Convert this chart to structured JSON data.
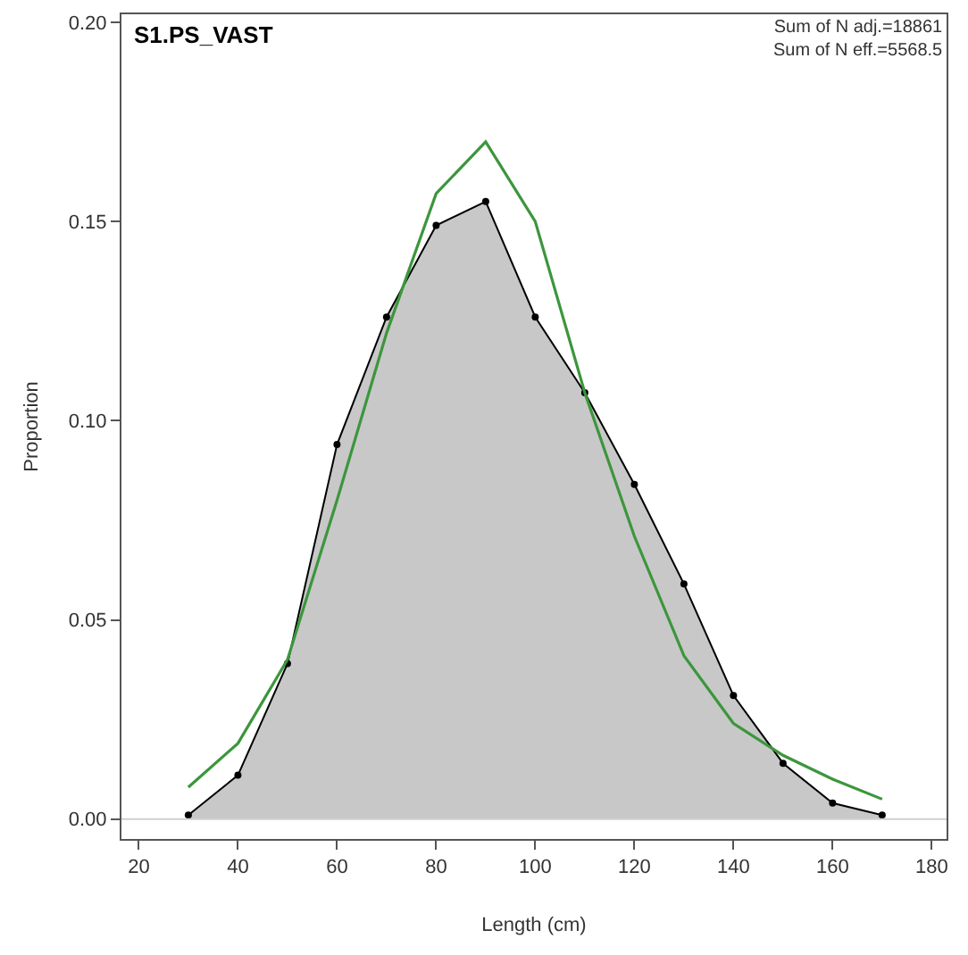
{
  "chart_data": {
    "type": "area",
    "title": "S1.PS_VAST",
    "xlabel": "Length (cm)",
    "ylabel": "Proportion",
    "annotations": [
      "Sum of N adj.=18861",
      "Sum of N eff.=5568.5"
    ],
    "x": [
      30,
      40,
      50,
      60,
      70,
      80,
      90,
      100,
      110,
      120,
      130,
      140,
      150,
      160,
      170
    ],
    "series": [
      {
        "color": "#c8c8c8",
        "marker": "circle",
        "values": [
          0.001,
          0.011,
          0.039,
          0.094,
          0.126,
          0.149,
          0.155,
          0.126,
          0.107,
          0.084,
          0.059,
          0.031,
          0.014,
          0.004,
          0.001
        ]
      },
      {
        "type": "line",
        "color": "#3c963c",
        "marker": "none",
        "values": [
          0.008,
          0.019,
          0.04,
          0.08,
          0.122,
          0.157,
          0.17,
          0.15,
          0.107,
          0.071,
          0.041,
          0.024,
          0.016,
          0.01,
          0.005
        ]
      }
    ],
    "xlim": [
      16.5,
      183
    ],
    "ylim": [
      -0.005,
      0.202
    ],
    "xticks": [
      20,
      40,
      60,
      80,
      100,
      120,
      140,
      160,
      180
    ],
    "yticks": [
      {
        "value": 0,
        "label": "0.00"
      },
      {
        "value": 0.05,
        "label": "0.05"
      },
      {
        "value": 0.1,
        "label": "0.10"
      },
      {
        "value": 0.15,
        "label": "0.15"
      },
      {
        "value": 0.2,
        "label": "0.20"
      }
    ],
    "ref_lines": [
      {
        "axis": "y",
        "value": 0,
        "color": "#d0d0d0"
      }
    ]
  }
}
